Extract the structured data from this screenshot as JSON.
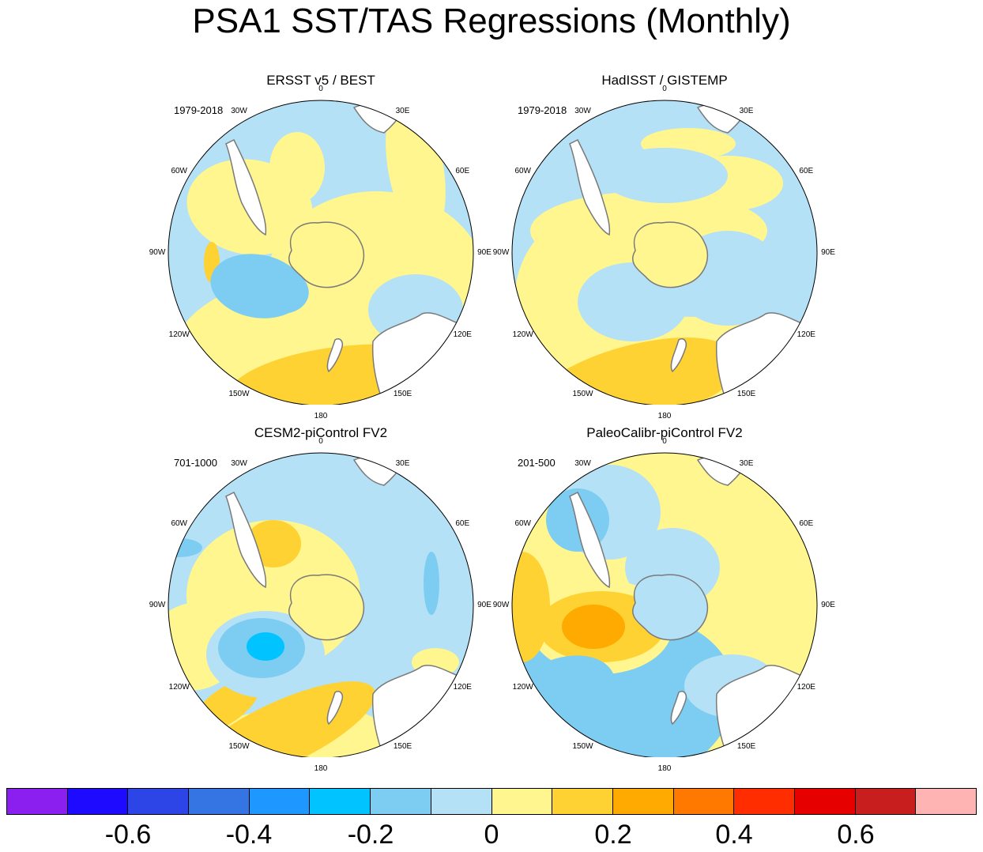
{
  "title": "PSA1 SST/TAS Regressions (Monthly)",
  "colors": {
    "land_gray": "#6f6f6f",
    "coast": "#7a7a7a",
    "boundary": "#000000"
  },
  "longitude_labels": {
    "n0": "0",
    "e30": "30E",
    "e60": "60E",
    "e90": "90E",
    "e120": "120E",
    "e150": "150E",
    "s180": "180",
    "w150": "150W",
    "w120": "120W",
    "w90": "90W",
    "w60": "60W",
    "w30": "30W"
  },
  "panels": [
    {
      "id": "ersst",
      "title": "ERSST v5 / BEST",
      "period": "1979-2018"
    },
    {
      "id": "hadisst",
      "title": "HadISST / GISTEMP",
      "period": "1979-2018"
    },
    {
      "id": "cesm2",
      "title": "CESM2-piControl FV2",
      "period": "701-1000"
    },
    {
      "id": "paleo",
      "title": "PaleoCalibr-piControl FV2",
      "period": "201-500"
    }
  ],
  "colorbar": {
    "colors": [
      "#8a1ff0",
      "#1e0aff",
      "#2d45e6",
      "#3574e3",
      "#1e97ff",
      "#00c3ff",
      "#7dccf2",
      "#b4e1f5",
      "#fff68f",
      "#ffd233",
      "#ffaa00",
      "#ff7800",
      "#ff2d00",
      "#e60000",
      "#c81e1e",
      "#ffb4b4"
    ],
    "tick_labels": [
      "-0.6",
      "-0.4",
      "-0.2",
      "0",
      "0.2",
      "0.4",
      "0.6"
    ]
  }
}
